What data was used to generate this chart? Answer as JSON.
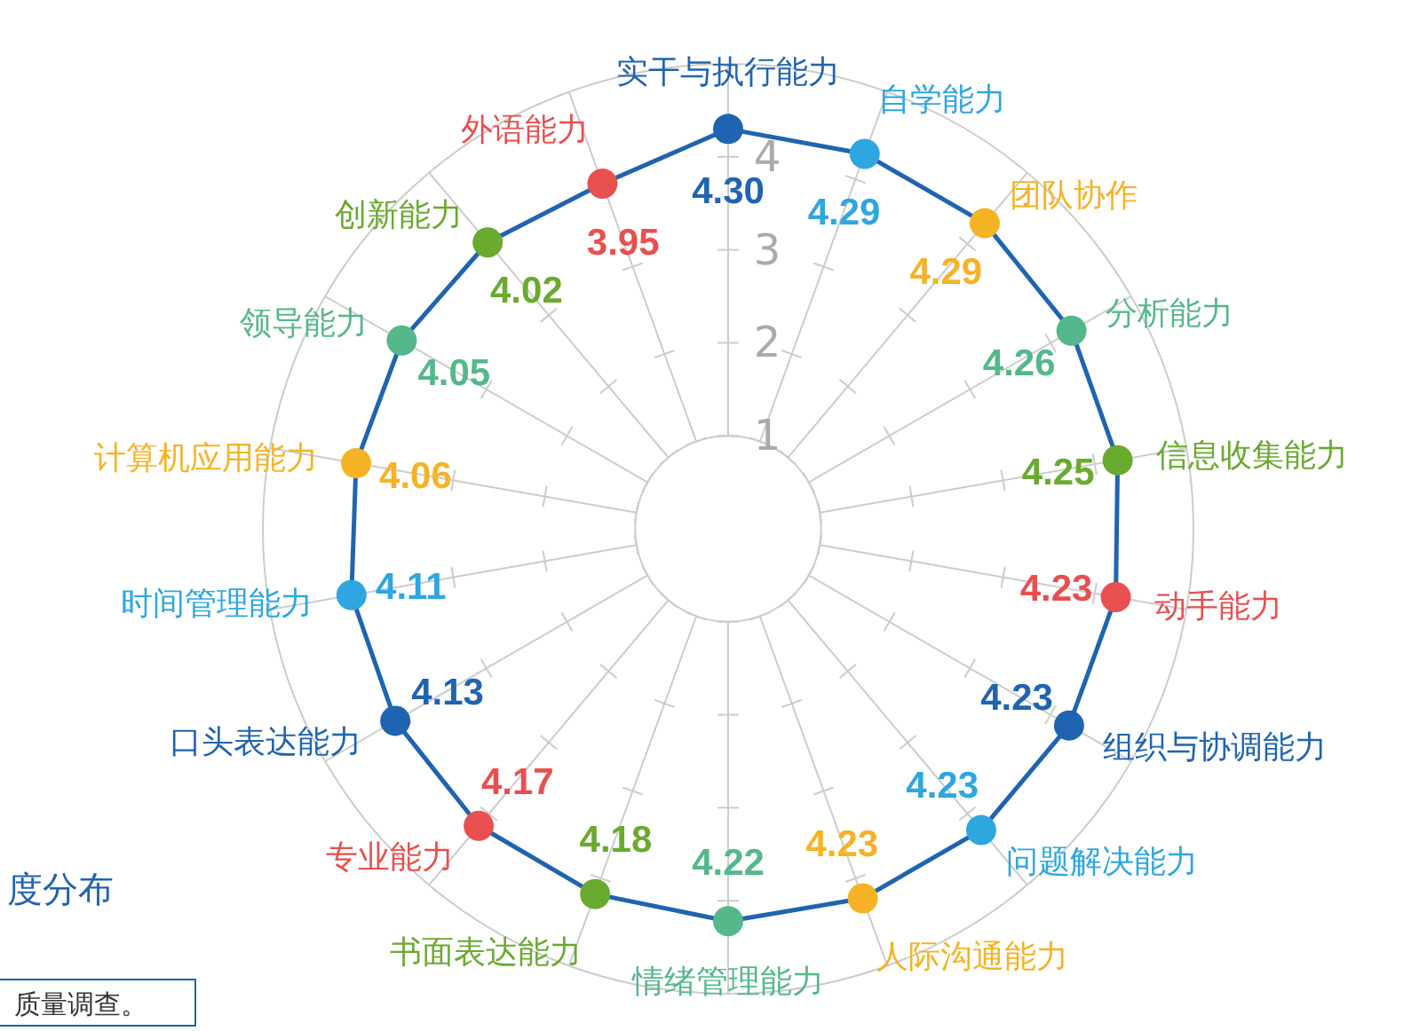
{
  "chart_data": {
    "type": "radar",
    "categories": [
      "实干与执行能力",
      "自学能力",
      "团队协作",
      "分析能力",
      "信息收集能力",
      "动手能力",
      "组织与协调能力",
      "问题解决能力",
      "人际沟通能力",
      "情绪管理能力",
      "书面表达能力",
      "专业能力",
      "口头表达能力",
      "时间管理能力",
      "计算机应用能力",
      "领导能力",
      "创新能力",
      "外语能力"
    ],
    "series": [
      {
        "color": "#1f64b0",
        "values": [
          4.3,
          4.29,
          4.29,
          4.26,
          4.25,
          4.23,
          4.23,
          4.23,
          4.23,
          4.22,
          4.18,
          4.17,
          4.13,
          4.11,
          4.06,
          4.05,
          4.02,
          3.95
        ],
        "value_labels": [
          "4.30",
          "4.29",
          "4.29",
          "4.26",
          "4.25",
          "4.23",
          "4.23",
          "4.23",
          "4.23",
          "4.22",
          "4.18",
          "4.17",
          "4.13",
          "4.11",
          "4.06",
          "4.05",
          "4.02",
          "3.95"
        ],
        "colors": [
          "#1f64b0",
          "#2ea7e0",
          "#f5b325",
          "#55b88a",
          "#6aaa2e",
          "#e8504f",
          "#1f64b0",
          "#2ea7e0",
          "#f5b325",
          "#55b88a",
          "#6aaa2e",
          "#e8504f",
          "#1f64b0",
          "#2ea7e0",
          "#f5b325",
          "#55b88a",
          "#6aaa2e",
          "#e8504f"
        ]
      }
    ],
    "ylim": [
      0,
      5
    ],
    "yticks": [
      1,
      2,
      3,
      4
    ],
    "grid": true,
    "marker": "circle",
    "annotations": [
      "度分布",
      "质量调查。"
    ]
  }
}
